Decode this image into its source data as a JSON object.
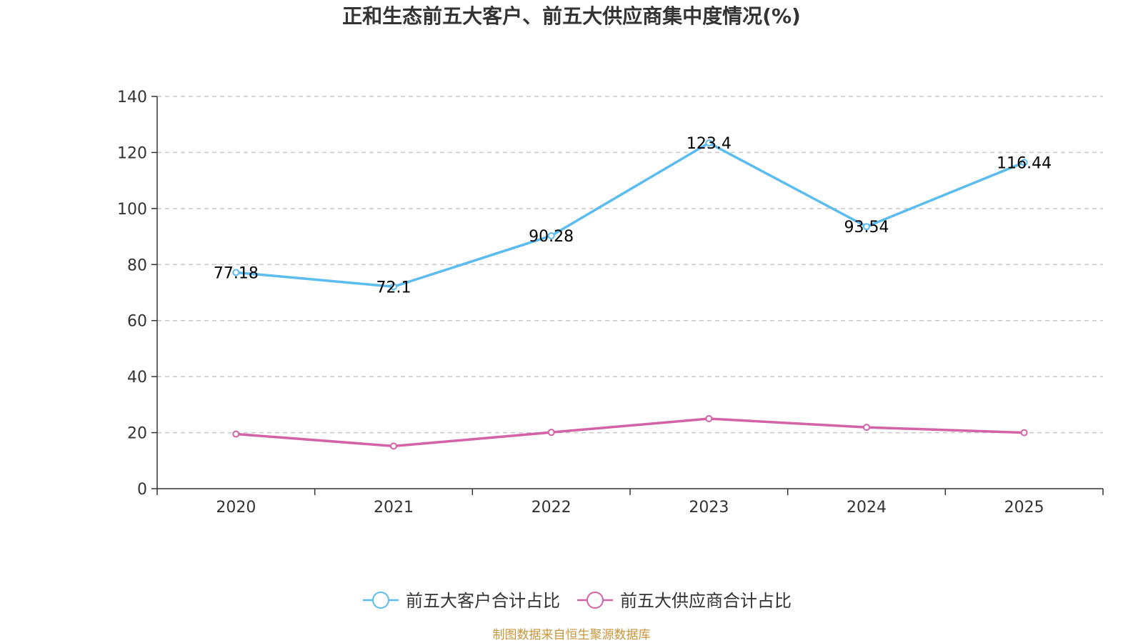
{
  "chart_data": {
    "type": "line",
    "title": "正和生态前五大客户、前五大供应商集中度情况(%)",
    "categories": [
      "2020",
      "2021",
      "2022",
      "2023",
      "2024",
      "2025"
    ],
    "ylim": [
      0,
      140
    ],
    "yticks": [
      0,
      20,
      40,
      60,
      80,
      100,
      120,
      140
    ],
    "grid": true,
    "legend_position": "bottom",
    "series": [
      {
        "name": "前五大客户合计占比",
        "color": "#5bbcf0",
        "show_labels": true,
        "values": [
          77.18,
          72.1,
          90.28,
          123.4,
          93.54,
          116.44
        ],
        "labels": [
          "77.18",
          "72.1",
          "90.28",
          "123.4",
          "93.54",
          "116.44"
        ]
      },
      {
        "name": "前五大供应商合计占比",
        "color": "#d462a6",
        "show_labels": false,
        "values": [
          19.5,
          15.2,
          20.1,
          25.0,
          21.9,
          20.0
        ]
      }
    ],
    "source": "制图数据来自恒生聚源数据库"
  }
}
